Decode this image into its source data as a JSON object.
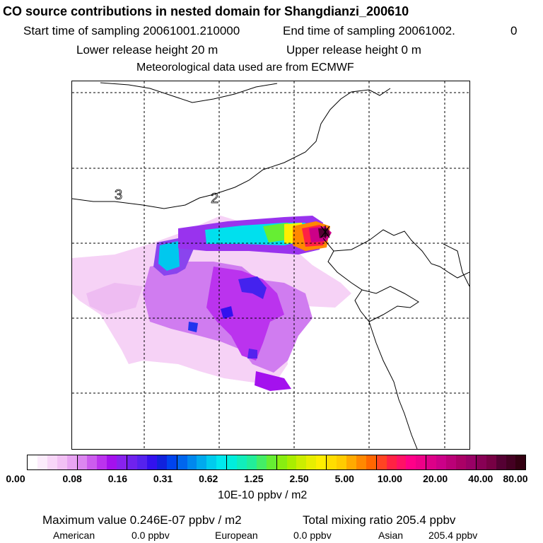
{
  "header": {
    "title": "CO  source contributions in nested domain for Shangdianzi_200610",
    "start_time": "Start time of sampling 20061001.210000",
    "end_time": "End time of sampling 20061002.",
    "end_time_suffix": "0",
    "lower_release": "Lower release height   20 m",
    "upper_release": "Upper release height    0 m",
    "met_data": "Meteorological data used are from ECMWF"
  },
  "map": {
    "region_labels": [
      "3",
      "2"
    ]
  },
  "legend": {
    "tick_labels": [
      "0.00",
      "0.08",
      "0.16",
      "0.31",
      "0.62",
      "1.25",
      "2.50",
      "5.00",
      "10.00",
      "20.00",
      "40.00",
      "80.00"
    ],
    "units": "10E-10 ppbv / m2",
    "colors": [
      "#ffffff",
      "#fcecfc",
      "#f8d6f8",
      "#f2c0f4",
      "#e8a4f2",
      "#dc86f0",
      "#cc5cee",
      "#bb33ee",
      "#a411ee",
      "#8822ee",
      "#6f22ee",
      "#5522ee",
      "#3311ee",
      "#1122dd",
      "#0044ee",
      "#0066ee",
      "#0088ee",
      "#00aaee",
      "#00ccee",
      "#00e8ee",
      "#00eedd",
      "#11eebb",
      "#22ee99",
      "#44ee66",
      "#66ee33",
      "#88ee11",
      "#aaee00",
      "#ccee00",
      "#e8ee00",
      "#ffee00",
      "#ffdd00",
      "#ffcc00",
      "#ffaa00",
      "#ff8800",
      "#ff6600",
      "#ff4422",
      "#ff2244",
      "#ff1166",
      "#ff0088",
      "#ee0088",
      "#dd0088",
      "#cc0088",
      "#bb0077",
      "#aa0066",
      "#990066",
      "#880055",
      "#770044",
      "#550033",
      "#440022",
      "#330011"
    ]
  },
  "footer": {
    "max_value": "Maximum value  0.246E-07 ppbv / m2",
    "total_mixing": "Total mixing ratio     205.4 ppbv",
    "american_label": "American",
    "american_value": "0.0 ppbv",
    "european_label": "European",
    "european_value": "0.0 ppbv",
    "asian_label": "Asian",
    "asian_value": "205.4 ppbv"
  }
}
